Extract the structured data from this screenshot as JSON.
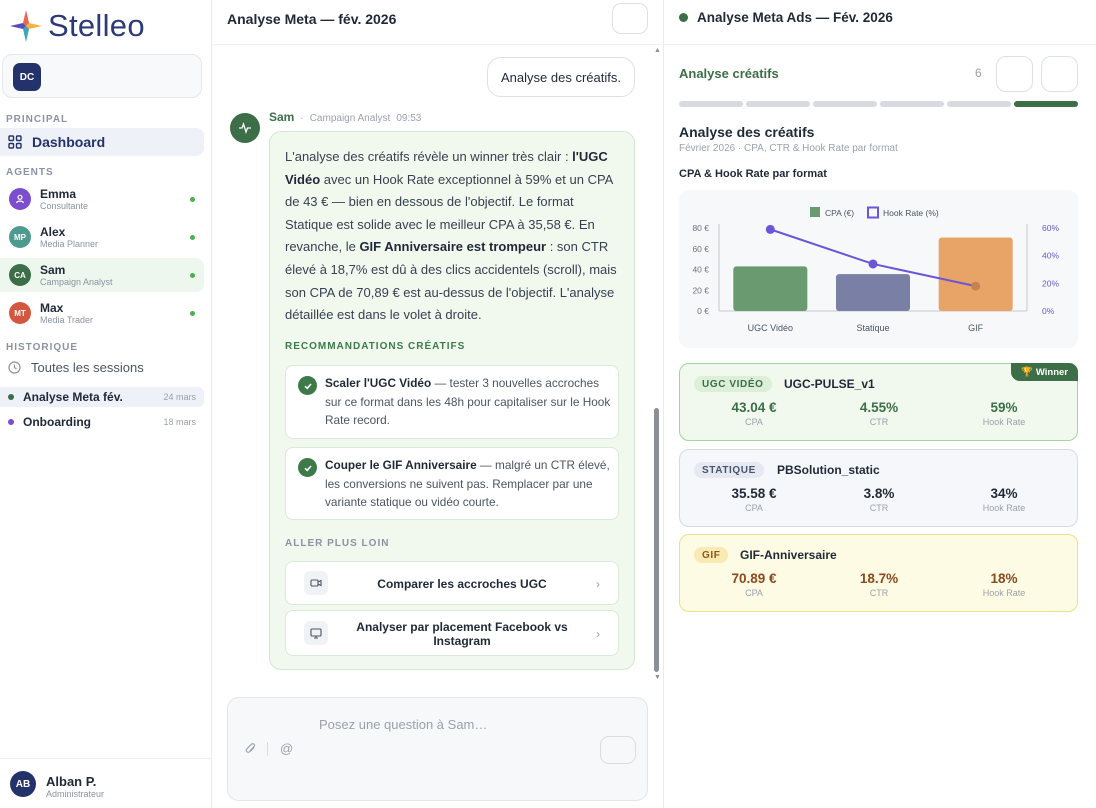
{
  "brand": {
    "name": "Stelleo"
  },
  "workspace": {
    "initials": "DC"
  },
  "sidebar": {
    "principal_label": "PRINCIPAL",
    "dashboard_label": "Dashboard",
    "agents_label": "AGENTS",
    "agents": [
      {
        "initials": "",
        "name": "Emma",
        "role": "Consultante",
        "color": "#7c4dce"
      },
      {
        "initials": "MP",
        "name": "Alex",
        "role": "Media Planner",
        "color": "#4e9a8e"
      },
      {
        "initials": "CA",
        "name": "Sam",
        "role": "Campaign Analyst",
        "color": "#3c6e47"
      },
      {
        "initials": "MT",
        "name": "Max",
        "role": "Media Trader",
        "color": "#d3573f"
      }
    ],
    "history_label": "HISTORIQUE",
    "all_sessions_label": "Toutes les sessions",
    "sessions": [
      {
        "name": "Analyse Meta fév.",
        "date": "24 mars",
        "color": "#3c6e47"
      },
      {
        "name": "Onboarding",
        "date": "18 mars",
        "color": "#7c4dce"
      }
    ]
  },
  "user": {
    "initials": "AB",
    "name": "Alban P.",
    "role": "Administrateur"
  },
  "chat": {
    "title": "Analyse Meta — fév. 2026",
    "user_message": "Analyse des créatifs.",
    "agent_name": "Sam",
    "agent_role": "Campaign Analyst",
    "time": "09:53",
    "p1": "L'analyse des créatifs révèle un winner très clair : ",
    "p1b": "l'UGC Vidéo",
    "p2": " avec un Hook Rate exceptionnel à 59% et un CPA de 43 € — bien en dessous de l'objectif. Le format Statique est solide avec le meilleur CPA à 35,58 €. En revanche, le ",
    "p2b": "GIF Anniversaire est trompeur",
    "p3": " : son CTR élevé à 18,7% est dû à des clics accidentels (scroll), mais son CPA de 70,89 € est au-dessus de l'objectif. L'analyse détaillée est dans le volet à droite.",
    "reco_label": "RECOMMANDATIONS CRÉATIFS",
    "recommendations": [
      {
        "bold": "Scaler l'UGC Vidéo",
        "text": " — tester 3 nouvelles accroches sur ce format dans les 48h pour capitaliser sur le Hook Rate record."
      },
      {
        "bold": "Couper le GIF Anniversaire",
        "text": " — malgré un CTR élevé, les conversions ne suivent pas. Remplacer par une variante statique ou vidéo courte."
      }
    ],
    "more_label": "ALLER PLUS LOIN",
    "actions": [
      {
        "label": "Comparer les accroches UGC",
        "icon": "video-icon"
      },
      {
        "label": "Analyser par placement Facebook vs Instagram",
        "icon": "monitor-icon"
      }
    ],
    "composer_placeholder": "Posez une question à Sam…",
    "at_symbol": "@"
  },
  "panel": {
    "title": "Analyse Meta Ads — Fév. 2026",
    "section_title": "Analyse créatifs",
    "count": "6",
    "steps_total": 6,
    "steps_active": 6,
    "analysis_title": "Analyse des créatifs",
    "analysis_subtitle": "Février 2026 · CPA, CTR & Hook Rate par format",
    "chart_title": "CPA & Hook Rate par format",
    "winner_label": "Winner",
    "cards": [
      {
        "tag": "UGC VIDÉO",
        "name": "UGC-PULSE_v1",
        "cpa": "43.04 €",
        "ctr": "4.55%",
        "hook": "59%",
        "cpa_label": "CPA",
        "ctr_label": "CTR",
        "hook_label": "Hook Rate"
      },
      {
        "tag": "STATIQUE",
        "name": "PBSolution_static",
        "cpa": "35.58 €",
        "ctr": "3.8%",
        "hook": "34%",
        "cpa_label": "CPA",
        "ctr_label": "CTR",
        "hook_label": "Hook Rate"
      },
      {
        "tag": "GIF",
        "name": "GIF-Anniversaire",
        "cpa": "70.89 €",
        "ctr": "18.7%",
        "hook": "18%",
        "cpa_label": "CPA",
        "ctr_label": "CTR",
        "hook_label": "Hook Rate"
      }
    ]
  },
  "colors": {
    "accent": "#3c6e47",
    "navy": "#24326b",
    "line": "#6c55d6"
  },
  "chart_data": {
    "type": "bar",
    "title": "CPA & Hook Rate par format",
    "categories": [
      "UGC Vidéo",
      "Statique",
      "GIF"
    ],
    "series": [
      {
        "name": "CPA (€)",
        "type": "bar",
        "axis": "left",
        "values": [
          43.04,
          35.58,
          70.89
        ],
        "colors": [
          "#6a9a70",
          "#7a7fa6",
          "#e8a466"
        ]
      },
      {
        "name": "Hook Rate (%)",
        "type": "line",
        "axis": "right",
        "values": [
          59,
          34,
          18
        ],
        "color": "#6c55d6"
      }
    ],
    "y_left": {
      "min": 0,
      "max": 80,
      "ticks": [
        "0 €",
        "20 €",
        "40 €",
        "60 €",
        "80 €"
      ]
    },
    "y_right": {
      "min": 0,
      "max": 60,
      "ticks": [
        "0%",
        "20%",
        "40%",
        "60%"
      ]
    },
    "legend": "top",
    "grid": true
  }
}
